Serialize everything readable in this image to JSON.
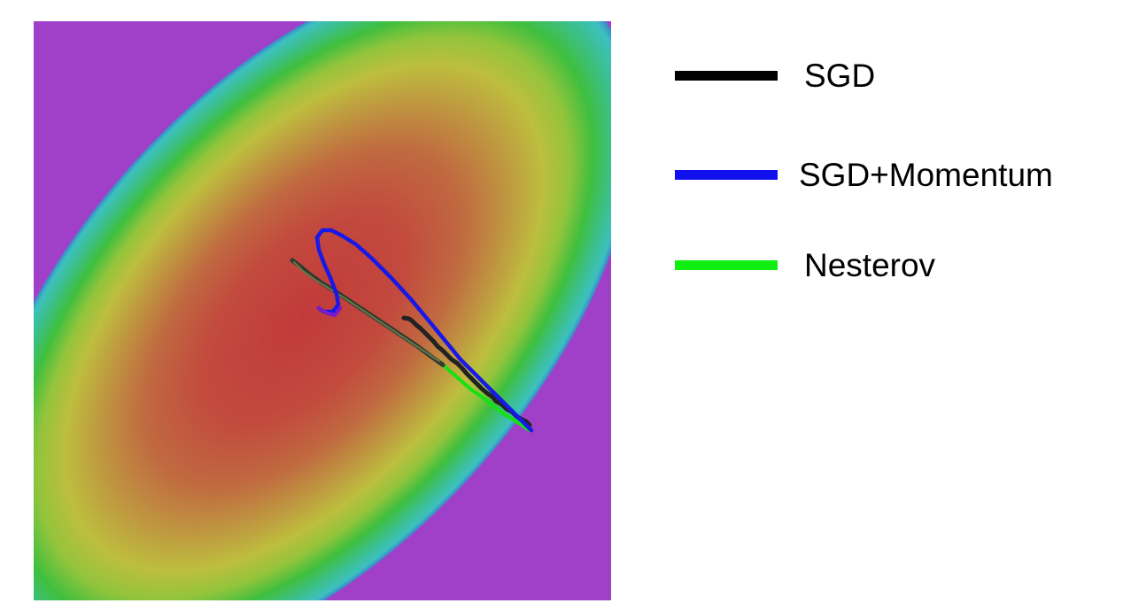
{
  "colors": {
    "sgd": "#000000",
    "sgd_momentum": "#1010ee",
    "nesterov": "#11ee11"
  },
  "contour_palette": [
    "#c13d3d",
    "#c25040",
    "#c07040",
    "#bfa040",
    "#bcc23c",
    "#8cc43c",
    "#3ebf3e",
    "#3cbf8c",
    "#3cc0c0",
    "#3c86c8",
    "#3c4ac6",
    "#6a3ccc",
    "#a040c8"
  ],
  "legend": {
    "items": [
      {
        "label": "SGD",
        "color_key": "sgd"
      },
      {
        "label": "SGD+Momentum",
        "color_key": "sgd_momentum"
      },
      {
        "label": "Nesterov",
        "color_key": "nesterov"
      }
    ]
  }
}
